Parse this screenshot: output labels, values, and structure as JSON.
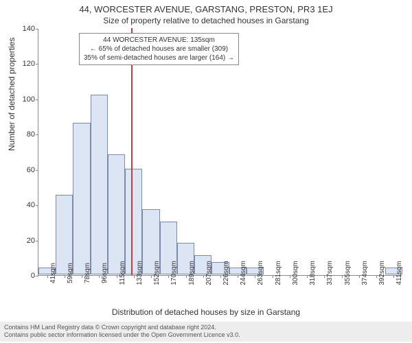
{
  "header": {
    "address": "44, WORCESTER AVENUE, GARSTANG, PRESTON, PR3 1EJ",
    "subtitle": "Size of property relative to detached houses in Garstang"
  },
  "chart": {
    "type": "histogram",
    "ylabel": "Number of detached properties",
    "xlabel": "Distribution of detached houses by size in Garstang",
    "ylim": [
      0,
      140
    ],
    "ytick_step": 20,
    "yticks": [
      0,
      20,
      40,
      60,
      80,
      100,
      120,
      140
    ],
    "bar_color": "#dce5f4",
    "bar_border_color": "#7a8aa8",
    "background_color": "#ffffff",
    "axis_color": "#888888",
    "marker_color": "#c04040",
    "marker_position_sqm": 135,
    "categories": [
      "41sqm",
      "59sqm",
      "78sqm",
      "96sqm",
      "115sqm",
      "133sqm",
      "152sqm",
      "170sqm",
      "189sqm",
      "207sqm",
      "226sqm",
      "244sqm",
      "263sqm",
      "281sqm",
      "300sqm",
      "318sqm",
      "337sqm",
      "355sqm",
      "374sqm",
      "392sqm",
      "411sqm"
    ],
    "values": [
      4,
      45,
      86,
      102,
      68,
      60,
      37,
      30,
      18,
      11,
      7,
      4,
      4,
      0,
      0,
      0,
      0,
      0,
      0,
      0,
      4
    ],
    "bar_width_ratio": 1.0,
    "label_fontsize": 12,
    "tick_fontsize": 10
  },
  "annotation": {
    "line1": "44 WORCESTER AVENUE: 135sqm",
    "line2": "← 65% of detached houses are smaller (309)",
    "line3": "35% of semi-detached houses are larger (164) →"
  },
  "footer": {
    "line1": "Contains HM Land Registry data © Crown copyright and database right 2024.",
    "line2": "Contains public sector information licensed under the Open Government Licence v3.0."
  }
}
